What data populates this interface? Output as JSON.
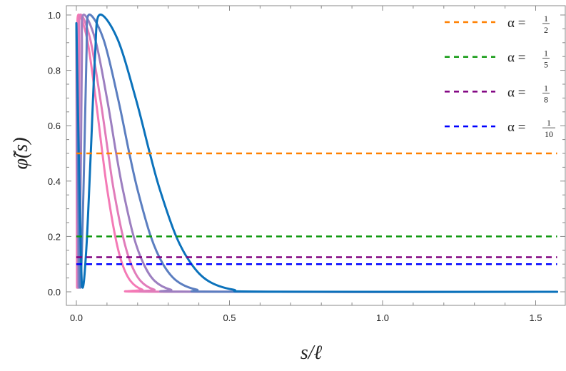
{
  "chart_data": {
    "type": "line",
    "xlabel": "s/ℓ",
    "ylabel": "φ̃(s)",
    "xlim": [
      -0.03,
      1.6
    ],
    "ylim": [
      -0.05,
      1.05
    ],
    "xticks": [
      "0.0",
      "0.5",
      "1.0",
      "1.5"
    ],
    "xtick_values": [
      0,
      0.5,
      1.0,
      1.5
    ],
    "yticks": [
      "0.0",
      "0.2",
      "0.4",
      "0.6",
      "0.8",
      "1.0"
    ],
    "ytick_values": [
      0,
      0.2,
      0.4,
      0.6,
      0.8,
      1.0
    ],
    "grid": false,
    "legend_placement": "top-right",
    "curves": [
      {
        "color": "#f47ab6",
        "x": [
          0,
          0.002,
          0.003,
          0.004,
          0.005,
          0.006,
          0.035,
          0.063,
          0.085,
          0.101,
          0.127,
          0.15,
          0.177,
          0.215,
          0.272,
          1.57
        ],
        "y": [
          0.97,
          0.02,
          0.146,
          0.5,
          0.854,
          1,
          0.914,
          0.698,
          0.5,
          0.368,
          0.2,
          0.1,
          0.039,
          0.008,
          0.0004,
          0
        ]
      },
      {
        "color": "#e17cba",
        "x": [
          0,
          0.004,
          0.006,
          0.008,
          0.01,
          0.012,
          0.045,
          0.078,
          0.104,
          0.122,
          0.152,
          0.179,
          0.21,
          0.254,
          0.32,
          1.57
        ],
        "y": [
          0.97,
          0.02,
          0.146,
          0.5,
          0.854,
          1,
          0.914,
          0.698,
          0.5,
          0.368,
          0.2,
          0.1,
          0.039,
          0.008,
          0.0004,
          0
        ]
      },
      {
        "color": "#9c7fc0",
        "x": [
          0,
          0.007,
          0.011,
          0.015,
          0.018,
          0.022,
          0.061,
          0.1,
          0.13,
          0.152,
          0.187,
          0.22,
          0.256,
          0.308,
          0.386,
          1.57
        ],
        "y": [
          0.97,
          0.02,
          0.146,
          0.5,
          0.854,
          1,
          0.914,
          0.698,
          0.5,
          0.368,
          0.2,
          0.1,
          0.039,
          0.008,
          0.0004,
          0
        ]
      },
      {
        "color": "#5b7ec0",
        "x": [
          0,
          0.011,
          0.018,
          0.026,
          0.033,
          0.04,
          0.088,
          0.136,
          0.173,
          0.2,
          0.243,
          0.283,
          0.328,
          0.392,
          0.488,
          1.57
        ],
        "y": [
          0.97,
          0.02,
          0.146,
          0.5,
          0.854,
          1,
          0.914,
          0.698,
          0.5,
          0.368,
          0.2,
          0.1,
          0.039,
          0.008,
          0.0004,
          0
        ]
      },
      {
        "color": "#0b72bb",
        "x": [
          0,
          0.018,
          0.032,
          0.047,
          0.061,
          0.075,
          0.134,
          0.194,
          0.24,
          0.273,
          0.326,
          0.376,
          0.431,
          0.511,
          0.629,
          1.57
        ],
        "y": [
          0.97,
          0.02,
          0.146,
          0.5,
          0.854,
          1,
          0.914,
          0.698,
          0.5,
          0.368,
          0.2,
          0.1,
          0.039,
          0.008,
          0.0004,
          0
        ]
      }
    ],
    "series": [
      {
        "name": "α = 1/2",
        "lhs": "α =",
        "num": "1",
        "den": "2",
        "value": 0.5,
        "color": "#ff8000",
        "style": "dashed"
      },
      {
        "name": "α = 1/5",
        "lhs": "α =",
        "num": "1",
        "den": "5",
        "value": 0.2,
        "color": "#119911",
        "style": "dashed"
      },
      {
        "name": "α = 1/8",
        "lhs": "α =",
        "num": "1",
        "den": "8",
        "value": 0.125,
        "color": "#800080",
        "style": "dashed"
      },
      {
        "name": "α = 1/10",
        "lhs": "α =",
        "num": "1",
        "den": "10",
        "value": 0.1,
        "color": "#0000ff",
        "style": "dashed"
      }
    ],
    "dashed_x_range": [
      0,
      1.57
    ]
  }
}
